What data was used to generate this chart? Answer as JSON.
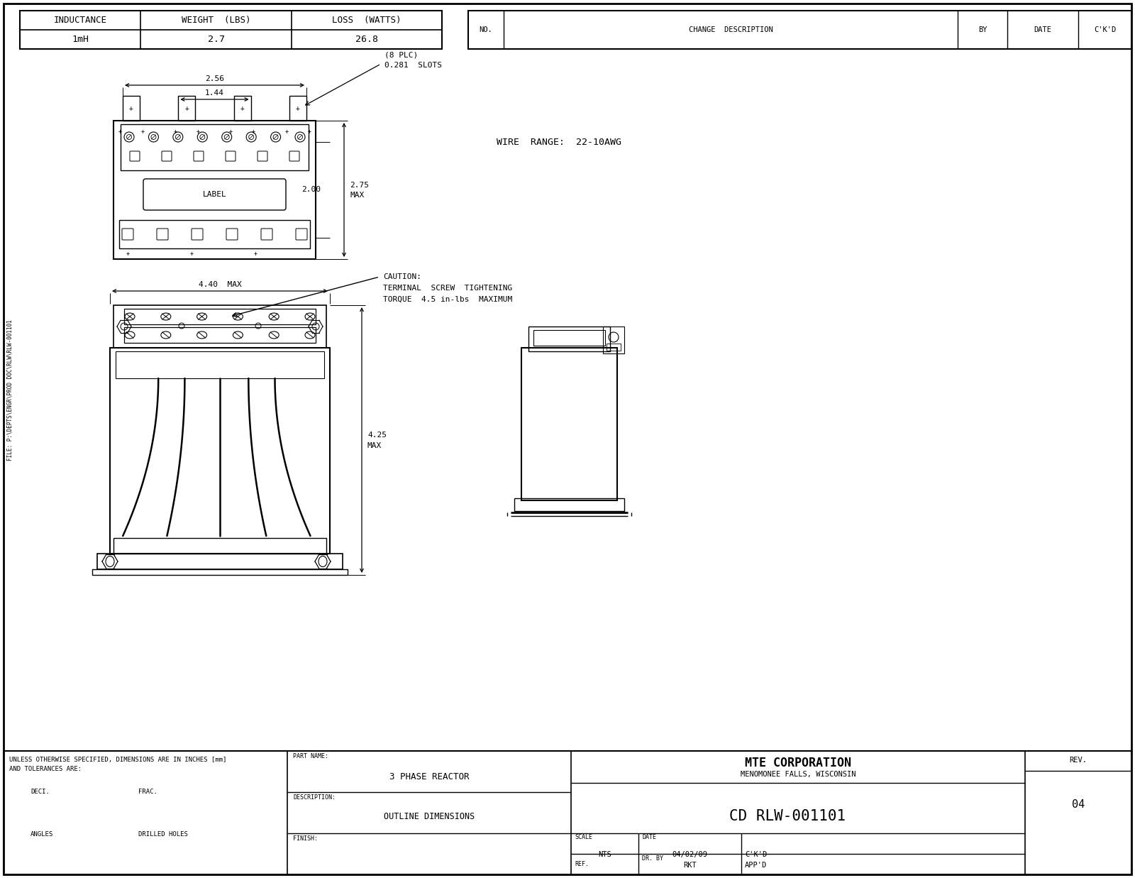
{
  "bg_color": "#ffffff",
  "lc": "#000000",
  "title_block": {
    "company": "MTE CORPORATION",
    "location": "MENOMONEE FALLS, WISCONSIN",
    "part_name": "3 PHASE REACTOR",
    "description": "OUTLINE DIMENSIONS",
    "drawing_number": "CD RLW-001101",
    "scale": "NTS",
    "date": "04/02/09",
    "ckd": "C'K'D",
    "rev": "04",
    "dr_by": "RKT",
    "appd": "APP'D",
    "ref": "REF."
  },
  "specs": {
    "inductance_label": "INDUCTANCE",
    "inductance_val": "1mH",
    "weight_label": "WEIGHT  (LBS)",
    "weight_val": "2.7",
    "loss_label": "LOSS  (WATTS)",
    "loss_val": "26.8"
  },
  "change": {
    "no_label": "NO.",
    "change_label": "CHANGE  DESCRIPTION",
    "by_label": "BY",
    "date_label": "DATE",
    "ckd_label": "C'K'D"
  },
  "notes": {
    "line1": "UNLESS OTHERWISE SPECIFIED, DIMENSIONS ARE IN INCHES [mm]",
    "line2": "AND TOLERANCES ARE:",
    "deci_label": "DECI.",
    "frac_label": "FRAC.",
    "angles_label": "ANGLES",
    "drilled_label": "DRILLED HOLES",
    "finish_label": "FINISH:",
    "part_name_label": "PART NAME:",
    "description_label": "DESCRIPTION:"
  },
  "ann": {
    "dim1": "2.56",
    "dim2": "1.44",
    "slots": "0.281  SLOTS",
    "slots2": "(8 PLC)",
    "height1": "2.00",
    "height2": "2.75",
    "height2b": "MAX",
    "label": "LABEL",
    "width_dim": "4.40  MAX",
    "height_dim": "4.25",
    "height_dimb": "MAX",
    "caution1": "CAUTION:",
    "caution2": "TERMINAL  SCREW  TIGHTENING",
    "caution3": "TORQUE  4.5 in-lbs  MAXIMUM",
    "wire_range": "WIRE  RANGE:  22-10AWG",
    "filepath": "FILE: P:\\DEPTS\\ENGR\\PROD DOC\\RLW\\RLW-001101"
  }
}
